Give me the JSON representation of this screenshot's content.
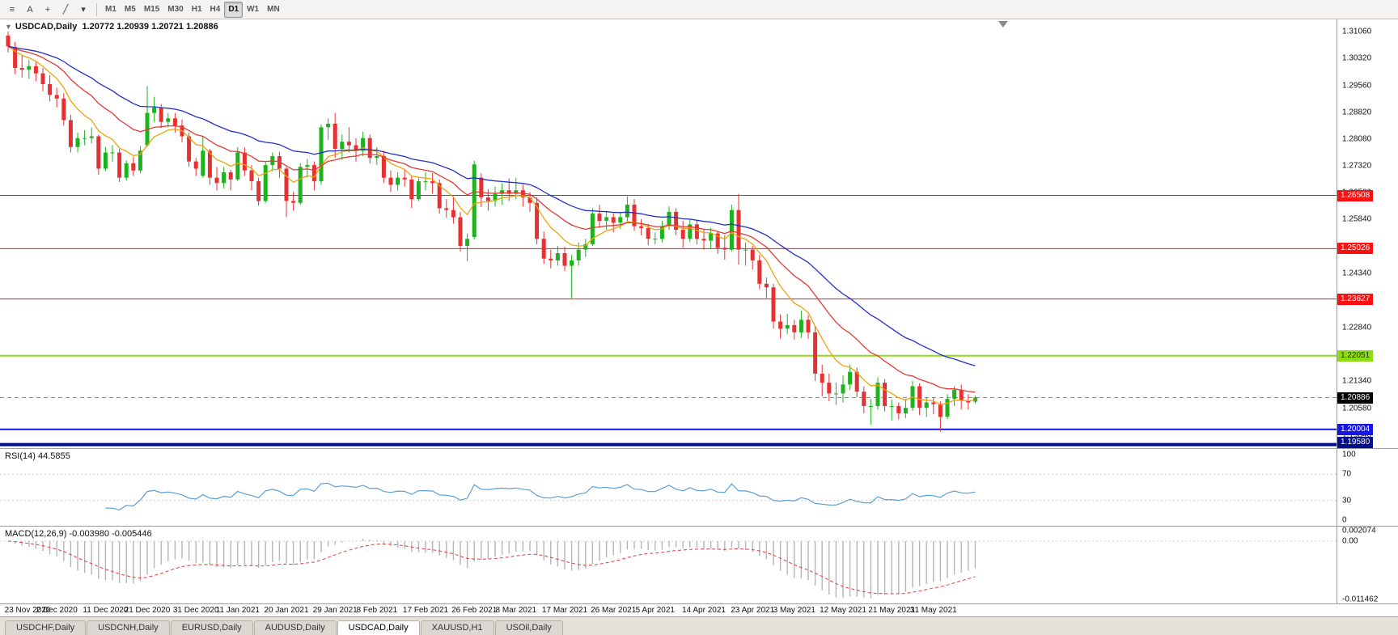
{
  "toolbar": {
    "tools": [
      {
        "name": "charts-menu",
        "glyph": "≡"
      },
      {
        "name": "cursor-tool",
        "glyph": "A"
      },
      {
        "name": "crosshair-tool",
        "glyph": "+"
      },
      {
        "name": "trendline-tool",
        "glyph": "╱"
      },
      {
        "name": "tools-dropdown",
        "glyph": "▾"
      }
    ],
    "timeframes": [
      {
        "label": "M1",
        "active": false
      },
      {
        "label": "M5",
        "active": false
      },
      {
        "label": "M15",
        "active": false
      },
      {
        "label": "M30",
        "active": false
      },
      {
        "label": "H1",
        "active": false
      },
      {
        "label": "H4",
        "active": false
      },
      {
        "label": "D1",
        "active": true
      },
      {
        "label": "W1",
        "active": false
      },
      {
        "label": "MN",
        "active": false
      }
    ]
  },
  "chart": {
    "collapse_icon": "▼",
    "symbol_period": "USDCAD,Daily",
    "open": "1.20772",
    "high": "1.20939",
    "low": "1.20721",
    "close": "1.20886",
    "price_axis_labels": [
      "1.31060",
      "1.30320",
      "1.29560",
      "1.28820",
      "1.28080",
      "1.27320",
      "1.26580",
      "1.25840",
      "1.25080",
      "1.24340",
      "1.23600",
      "1.22840",
      "1.22100",
      "1.21340",
      "1.20580",
      "1.19840"
    ],
    "price_range": {
      "max": 1.314,
      "min": 1.1948
    },
    "colors": {
      "up": "#1eb21e",
      "down": "#e53131"
    },
    "moving_averages": [
      {
        "name": "ma-fast",
        "period": 8,
        "color": "#f0a30a"
      },
      {
        "name": "ma-mid",
        "period": 18,
        "color": "#e53935"
      },
      {
        "name": "ma-slow",
        "period": 34,
        "color": "#2230c8"
      }
    ],
    "hlines": [
      {
        "value": 1.26508,
        "label": "1.26508",
        "color": "#ff1010",
        "thickness": 1
      },
      {
        "value": 1.25026,
        "label": "1.25026",
        "color": "#ff1010",
        "thickness": 1
      },
      {
        "value": 1.23627,
        "label": "1.23627",
        "color": "#ff1010",
        "thickness": 1
      },
      {
        "value": 1.22051,
        "label": "1.22051",
        "color": "#8fdc13",
        "thickness": 2,
        "text_color": "#103300"
      },
      {
        "value": 1.20004,
        "label": "1.20004",
        "color": "#1515e6",
        "thickness": 2
      },
      {
        "value": 1.1958,
        "label": "1.19580",
        "color": "#000e8b",
        "thickness": 4
      }
    ],
    "current_price": {
      "value": 1.20886,
      "label": "1.20886",
      "box_color": "#000000"
    }
  },
  "chart_data": {
    "type": "candlestick",
    "symbol": "USDCAD",
    "timeframe": "Daily",
    "candles": [
      [
        1.3095,
        1.3107,
        1.3048,
        1.3065
      ],
      [
        1.3063,
        1.3078,
        1.2988,
        1.3005
      ],
      [
        1.3005,
        1.3042,
        1.2978,
        1.3
      ],
      [
        1.3,
        1.3028,
        1.2975,
        1.301
      ],
      [
        1.301,
        1.3022,
        1.2968,
        1.299
      ],
      [
        1.299,
        1.3005,
        1.294,
        1.296
      ],
      [
        1.296,
        1.2985,
        1.2912,
        1.293
      ],
      [
        1.293,
        1.295,
        1.2895,
        1.292
      ],
      [
        1.292,
        1.2935,
        1.2845,
        1.286
      ],
      [
        1.286,
        1.2875,
        1.277,
        1.2785
      ],
      [
        1.2785,
        1.2825,
        1.277,
        1.281
      ],
      [
        1.281,
        1.2832,
        1.279,
        1.281
      ],
      [
        1.281,
        1.284,
        1.2795,
        1.2815
      ],
      [
        1.2815,
        1.282,
        1.2708,
        1.2725
      ],
      [
        1.2725,
        1.2785,
        1.2718,
        1.277
      ],
      [
        1.277,
        1.279,
        1.2745,
        1.277
      ],
      [
        1.277,
        1.278,
        1.2688,
        1.27
      ],
      [
        1.27,
        1.2748,
        1.2692,
        1.274
      ],
      [
        1.274,
        1.2758,
        1.2705,
        1.272
      ],
      [
        1.272,
        1.2788,
        1.2712,
        1.2775
      ],
      [
        1.279,
        1.2955,
        1.2785,
        1.288
      ],
      [
        1.288,
        1.2925,
        1.2855,
        1.2895
      ],
      [
        1.2895,
        1.2905,
        1.2838,
        1.2855
      ],
      [
        1.2855,
        1.288,
        1.284,
        1.2865
      ],
      [
        1.2865,
        1.288,
        1.2825,
        1.2845
      ],
      [
        1.2845,
        1.2862,
        1.2798,
        1.2815
      ],
      [
        1.2815,
        1.2825,
        1.273,
        1.2745
      ],
      [
        1.2745,
        1.2755,
        1.2705,
        1.2725
      ],
      [
        1.2705,
        1.2815,
        1.27,
        1.2775
      ],
      [
        1.2775,
        1.278,
        1.268,
        1.27
      ],
      [
        1.27,
        1.273,
        1.2665,
        1.2685
      ],
      [
        1.2685,
        1.273,
        1.267,
        1.2715
      ],
      [
        1.2715,
        1.2722,
        1.2665,
        1.2695
      ],
      [
        1.2695,
        1.2785,
        1.269,
        1.277
      ],
      [
        1.277,
        1.2784,
        1.2705,
        1.272
      ],
      [
        1.272,
        1.2735,
        1.2665,
        1.269
      ],
      [
        1.269,
        1.27,
        1.2622,
        1.2635
      ],
      [
        1.2635,
        1.2745,
        1.263,
        1.2735
      ],
      [
        1.2735,
        1.277,
        1.2718,
        1.276
      ],
      [
        1.276,
        1.2772,
        1.27,
        1.2725
      ],
      [
        1.2725,
        1.273,
        1.259,
        1.2635
      ],
      [
        1.2635,
        1.266,
        1.2608,
        1.263
      ],
      [
        1.263,
        1.274,
        1.2625,
        1.273
      ],
      [
        1.273,
        1.2752,
        1.27,
        1.2735
      ],
      [
        1.2735,
        1.2745,
        1.2665,
        1.269
      ],
      [
        1.269,
        1.2848,
        1.268,
        1.284
      ],
      [
        1.284,
        1.2865,
        1.2805,
        1.285
      ],
      [
        1.285,
        1.288,
        1.2755,
        1.278
      ],
      [
        1.278,
        1.282,
        1.275,
        1.28
      ],
      [
        1.28,
        1.284,
        1.277,
        1.279
      ],
      [
        1.279,
        1.281,
        1.2745,
        1.2775
      ],
      [
        1.2775,
        1.2828,
        1.276,
        1.281
      ],
      [
        1.281,
        1.282,
        1.274,
        1.2755
      ],
      [
        1.2755,
        1.2785,
        1.2735,
        1.276
      ],
      [
        1.276,
        1.2775,
        1.2685,
        1.27
      ],
      [
        1.27,
        1.272,
        1.266,
        1.268
      ],
      [
        1.268,
        1.2715,
        1.2665,
        1.27
      ],
      [
        1.27,
        1.2722,
        1.2675,
        1.2695
      ],
      [
        1.2695,
        1.2705,
        1.2615,
        1.264
      ],
      [
        1.264,
        1.27,
        1.2635,
        1.269
      ],
      [
        1.269,
        1.2715,
        1.2665,
        1.269
      ],
      [
        1.269,
        1.2712,
        1.2655,
        1.2685
      ],
      [
        1.2685,
        1.2695,
        1.26,
        1.2615
      ],
      [
        1.2615,
        1.264,
        1.2588,
        1.261
      ],
      [
        1.261,
        1.2648,
        1.2572,
        1.259
      ],
      [
        1.259,
        1.2605,
        1.2495,
        1.251
      ],
      [
        1.251,
        1.2545,
        1.2468,
        1.253
      ],
      [
        1.2535,
        1.2747,
        1.2528,
        1.2737
      ],
      [
        1.27,
        1.2712,
        1.2618,
        1.2645
      ],
      [
        1.2645,
        1.2668,
        1.2608,
        1.2635
      ],
      [
        1.2635,
        1.2675,
        1.262,
        1.2655
      ],
      [
        1.2655,
        1.2685,
        1.2625,
        1.2665
      ],
      [
        1.2665,
        1.2698,
        1.2635,
        1.2655
      ],
      [
        1.2655,
        1.27,
        1.264,
        1.2665
      ],
      [
        1.2665,
        1.268,
        1.262,
        1.2645
      ],
      [
        1.2645,
        1.266,
        1.2605,
        1.263
      ],
      [
        1.263,
        1.2645,
        1.2515,
        1.253
      ],
      [
        1.253,
        1.255,
        1.246,
        1.2475
      ],
      [
        1.2475,
        1.25,
        1.2448,
        1.247
      ],
      [
        1.247,
        1.251,
        1.2455,
        1.249
      ],
      [
        1.249,
        1.2508,
        1.244,
        1.2455
      ],
      [
        1.2455,
        1.2485,
        1.2365,
        1.247
      ],
      [
        1.247,
        1.252,
        1.2455,
        1.25
      ],
      [
        1.25,
        1.253,
        1.248,
        1.2515
      ],
      [
        1.2515,
        1.2615,
        1.251,
        1.26
      ],
      [
        1.26,
        1.2625,
        1.256,
        1.258
      ],
      [
        1.258,
        1.2608,
        1.2555,
        1.259
      ],
      [
        1.259,
        1.2602,
        1.2548,
        1.2575
      ],
      [
        1.2575,
        1.2605,
        1.2558,
        1.259
      ],
      [
        1.259,
        1.2648,
        1.258,
        1.2625
      ],
      [
        1.2625,
        1.264,
        1.2552,
        1.2565
      ],
      [
        1.2565,
        1.2585,
        1.254,
        1.256
      ],
      [
        1.256,
        1.2572,
        1.2512,
        1.253
      ],
      [
        1.253,
        1.2548,
        1.2515,
        1.253
      ],
      [
        1.253,
        1.258,
        1.252,
        1.2565
      ],
      [
        1.2565,
        1.262,
        1.2555,
        1.2605
      ],
      [
        1.2605,
        1.2615,
        1.254,
        1.2555
      ],
      [
        1.2555,
        1.258,
        1.2505,
        1.253
      ],
      [
        1.253,
        1.2585,
        1.2522,
        1.257
      ],
      [
        1.257,
        1.258,
        1.2515,
        1.253
      ],
      [
        1.253,
        1.2555,
        1.25,
        1.2525
      ],
      [
        1.2525,
        1.256,
        1.2502,
        1.2545
      ],
      [
        1.2545,
        1.2552,
        1.2488,
        1.2505
      ],
      [
        1.2505,
        1.254,
        1.2472,
        1.25
      ],
      [
        1.25,
        1.2625,
        1.2495,
        1.261
      ],
      [
        1.261,
        1.2655,
        1.2458,
        1.25
      ],
      [
        1.25,
        1.252,
        1.2455,
        1.25
      ],
      [
        1.25,
        1.251,
        1.2445,
        1.247
      ],
      [
        1.247,
        1.2485,
        1.239,
        1.2405
      ],
      [
        1.2405,
        1.2422,
        1.2365,
        1.2395
      ],
      [
        1.2395,
        1.2405,
        1.228,
        1.23
      ],
      [
        1.23,
        1.232,
        1.2252,
        1.228
      ],
      [
        1.228,
        1.2322,
        1.2266,
        1.229
      ],
      [
        1.229,
        1.2305,
        1.225,
        1.227
      ],
      [
        1.227,
        1.233,
        1.2255,
        1.2305
      ],
      [
        1.2305,
        1.2318,
        1.2252,
        1.227
      ],
      [
        1.227,
        1.2288,
        1.2135,
        1.2155
      ],
      [
        1.2155,
        1.218,
        1.2092,
        1.213
      ],
      [
        1.213,
        1.2155,
        1.2078,
        1.21
      ],
      [
        1.21,
        1.213,
        1.2068,
        1.21
      ],
      [
        1.21,
        1.215,
        1.2075,
        1.2125
      ],
      [
        1.2125,
        1.218,
        1.211,
        1.216
      ],
      [
        1.216,
        1.2172,
        1.209,
        1.2105
      ],
      [
        1.2105,
        1.212,
        1.2045,
        1.2065
      ],
      [
        1.2065,
        1.2085,
        1.2013,
        1.2065
      ],
      [
        1.2065,
        1.2145,
        1.2055,
        1.213
      ],
      [
        1.213,
        1.214,
        1.205,
        1.2065
      ],
      [
        1.2065,
        1.2082,
        1.2025,
        1.2065
      ],
      [
        1.2065,
        1.2075,
        1.2028,
        1.2045
      ],
      [
        1.2045,
        1.2085,
        1.2032,
        1.206
      ],
      [
        1.206,
        1.2135,
        1.2052,
        1.212
      ],
      [
        1.212,
        1.2128,
        1.204,
        1.206
      ],
      [
        1.206,
        1.209,
        1.2035,
        1.2075
      ],
      [
        1.2075,
        1.2088,
        1.2042,
        1.207
      ],
      [
        1.207,
        1.2078,
        1.1995,
        1.2035
      ],
      [
        1.2035,
        1.2098,
        1.2028,
        1.2085
      ],
      [
        1.2085,
        1.212,
        1.2065,
        1.211
      ],
      [
        1.211,
        1.2125,
        1.2055,
        1.208
      ],
      [
        1.208,
        1.2098,
        1.2055,
        1.2075
      ],
      [
        1.20772,
        1.20939,
        1.20721,
        1.20886
      ]
    ],
    "date_labels": [
      {
        "label": "23 Nov 2020",
        "i": 0
      },
      {
        "label": "2 Dec 2020",
        "i": 7
      },
      {
        "label": "11 Dec 2020",
        "i": 14
      },
      {
        "label": "21 Dec 2020",
        "i": 20
      },
      {
        "label": "31 Dec 2020",
        "i": 27
      },
      {
        "label": "11 Jan 2021",
        "i": 33
      },
      {
        "label": "20 Jan 2021",
        "i": 40
      },
      {
        "label": "29 Jan 2021",
        "i": 47
      },
      {
        "label": "8 Feb 2021",
        "i": 53
      },
      {
        "label": "17 Feb 2021",
        "i": 60
      },
      {
        "label": "26 Feb 2021",
        "i": 67
      },
      {
        "label": "8 Mar 2021",
        "i": 73
      },
      {
        "label": "17 Mar 2021",
        "i": 80
      },
      {
        "label": "26 Mar 2021",
        "i": 87
      },
      {
        "label": "5 Apr 2021",
        "i": 93
      },
      {
        "label": "14 Apr 2021",
        "i": 100
      },
      {
        "label": "23 Apr 2021",
        "i": 107
      },
      {
        "label": "3 May 2021",
        "i": 113
      },
      {
        "label": "12 May 2021",
        "i": 120
      },
      {
        "label": "21 May 2021",
        "i": 127
      },
      {
        "label": "31 May 2021",
        "i": 133
      }
    ]
  },
  "indicators": {
    "rsi": {
      "name": "RSI(14)",
      "value": "44.5855",
      "period": 14,
      "color": "#5b9fd6",
      "levels": [
        70,
        30
      ],
      "axis_labels": [
        "100",
        "70",
        "30",
        "0"
      ]
    },
    "macd": {
      "name": "MACD(12,26,9)",
      "value": "-0.003980 -0.005446",
      "fast": 12,
      "slow": 26,
      "signal": 9,
      "range": {
        "max": 0.002074,
        "min": -0.011462
      },
      "axis_labels": [
        "0.002074",
        "0.00",
        "-0.011462"
      ],
      "histogram_color": "#b4b4b4",
      "signal_color": "#e23b3b"
    }
  },
  "tabs": [
    {
      "label": "USDCHF,Daily",
      "active": false
    },
    {
      "label": "USDCNH,Daily",
      "active": false
    },
    {
      "label": "EURUSD,Daily",
      "active": false
    },
    {
      "label": "AUDUSD,Daily",
      "active": false
    },
    {
      "label": "USDCAD,Daily",
      "active": true
    },
    {
      "label": "XAUUSD,H1",
      "active": false
    },
    {
      "label": "USOil,Daily",
      "active": false
    }
  ]
}
